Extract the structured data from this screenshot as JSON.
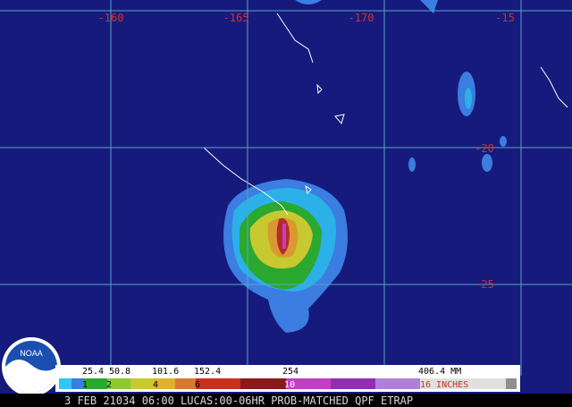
{
  "map": {
    "longitude_labels": [
      "-160",
      "-165",
      "-170"
    ],
    "latitude_labels": [
      "-15",
      "-20",
      "-25"
    ],
    "logo": "NOAA",
    "legend": {
      "mm_labels": [
        "25.4",
        "50.8",
        "101.6",
        "152.4",
        "254",
        "406.4 MM"
      ],
      "inch_labels": [
        "1",
        "2",
        "4",
        "6",
        "10",
        "16 INCHES"
      ]
    },
    "caption": "3 FEB 21034 06:00 LUCAS:00-06HR PROB-MATCHED QPF ETRAP"
  }
}
